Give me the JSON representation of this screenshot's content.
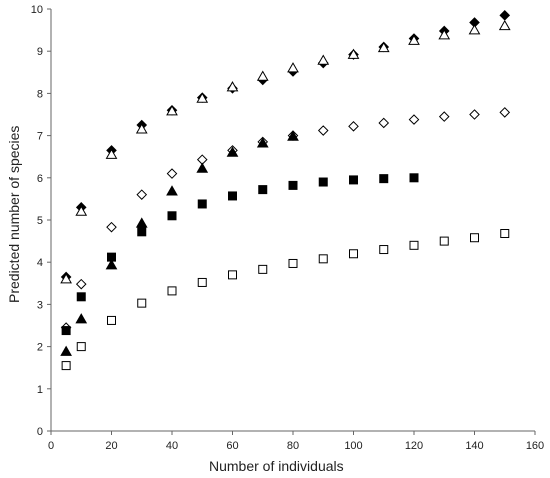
{
  "chart_data": {
    "type": "scatter",
    "title": "",
    "xlabel": "Number of individuals",
    "ylabel": "Predicted number of species",
    "xlim": [
      0,
      160
    ],
    "ylim": [
      0,
      10
    ],
    "xticks": [
      "0",
      "20",
      "40",
      "60",
      "80",
      "100",
      "120",
      "140",
      "160"
    ],
    "yticks": [
      "0",
      "1",
      "2",
      "3",
      "4",
      "5",
      "6",
      "7",
      "8",
      "9",
      "10"
    ],
    "grid": false,
    "legend": "none",
    "series": [
      {
        "marker": "diamond-filled",
        "color": "#000000",
        "x": [
          5,
          10,
          20,
          30,
          40,
          50,
          60,
          70,
          80,
          90,
          100,
          110,
          120,
          130,
          140,
          150
        ],
        "y": [
          3.65,
          5.3,
          6.65,
          7.25,
          7.6,
          7.9,
          8.12,
          8.32,
          8.52,
          8.72,
          8.92,
          9.1,
          9.3,
          9.48,
          9.68,
          9.85
        ]
      },
      {
        "marker": "triangle-open",
        "color": "#000000",
        "x": [
          5,
          10,
          20,
          30,
          40,
          50,
          60,
          70,
          80,
          90,
          100,
          110,
          120,
          130,
          140,
          150
        ],
        "y": [
          3.6,
          5.2,
          6.55,
          7.15,
          7.58,
          7.88,
          8.15,
          8.4,
          8.6,
          8.78,
          8.92,
          9.08,
          9.25,
          9.38,
          9.5,
          9.6
        ]
      },
      {
        "marker": "diamond-open",
        "color": "#000000",
        "x": [
          5,
          10,
          20,
          30,
          40,
          50,
          60,
          70,
          80,
          90,
          100,
          110,
          120,
          130,
          140,
          150
        ],
        "y": [
          2.45,
          3.48,
          4.83,
          5.6,
          6.1,
          6.43,
          6.65,
          6.85,
          7.0,
          7.12,
          7.22,
          7.3,
          7.38,
          7.45,
          7.5,
          7.55
        ]
      },
      {
        "marker": "triangle-filled",
        "color": "#000000",
        "x": [
          5,
          10,
          20,
          30,
          40,
          50,
          60,
          70,
          80
        ],
        "y": [
          1.88,
          2.65,
          3.93,
          4.92,
          5.68,
          6.22,
          6.6,
          6.82,
          6.98
        ]
      },
      {
        "marker": "square-filled",
        "color": "#000000",
        "x": [
          5,
          10,
          20,
          30,
          40,
          50,
          60,
          70,
          80,
          90,
          100,
          110,
          120
        ],
        "y": [
          2.38,
          3.18,
          4.12,
          4.72,
          5.1,
          5.38,
          5.57,
          5.72,
          5.82,
          5.9,
          5.95,
          5.98,
          6.0
        ]
      },
      {
        "marker": "square-open",
        "color": "#000000",
        "x": [
          5,
          10,
          20,
          30,
          40,
          50,
          60,
          70,
          80,
          90,
          100,
          110,
          120,
          130,
          140,
          150
        ],
        "y": [
          1.55,
          2.0,
          2.62,
          3.03,
          3.32,
          3.52,
          3.7,
          3.83,
          3.97,
          4.08,
          4.2,
          4.3,
          4.4,
          4.5,
          4.58,
          4.68
        ]
      }
    ]
  }
}
